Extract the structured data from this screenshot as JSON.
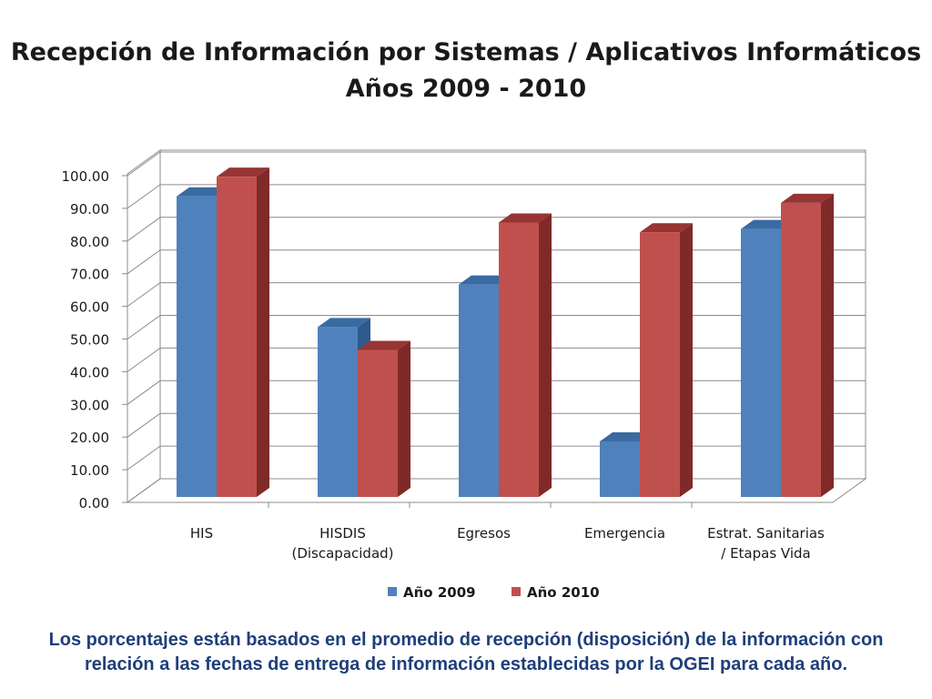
{
  "page": {
    "title_line1": "Recepción de Información por Sistemas / Aplicativos Informáticos",
    "title_line2": "Años 2009 - 2010",
    "note": "Los porcentajes están basados en el promedio de recepción (disposición) de la información con relación a las fechas de entrega de información establecidas por la OGEI para cada año."
  },
  "chart_data": {
    "type": "bar",
    "style": "3d-clustered-column",
    "categories": [
      [
        "HIS"
      ],
      [
        "HISDIS",
        "(Discapacidad)"
      ],
      [
        "Egresos"
      ],
      [
        "Emergencia"
      ],
      [
        "Estrat. Sanitarias",
        "/ Etapas Vida"
      ]
    ],
    "series": [
      {
        "name": "Año 2009",
        "values": [
          92,
          52,
          65,
          17,
          82
        ],
        "color": "#4f81bd",
        "side_color": "#2c5a8f",
        "top_color": "#3a6aa2"
      },
      {
        "name": "Año 2010",
        "values": [
          98,
          45,
          84,
          81,
          90
        ],
        "color": "#c0504d",
        "side_color": "#7f2a28",
        "top_color": "#963533"
      }
    ],
    "yticks": [
      "0.00",
      "10.00",
      "20.00",
      "30.00",
      "40.00",
      "50.00",
      "60.00",
      "70.00",
      "80.00",
      "90.00",
      "100.00"
    ],
    "ylim": [
      0,
      100
    ],
    "grid": true,
    "legend": "bottom"
  }
}
